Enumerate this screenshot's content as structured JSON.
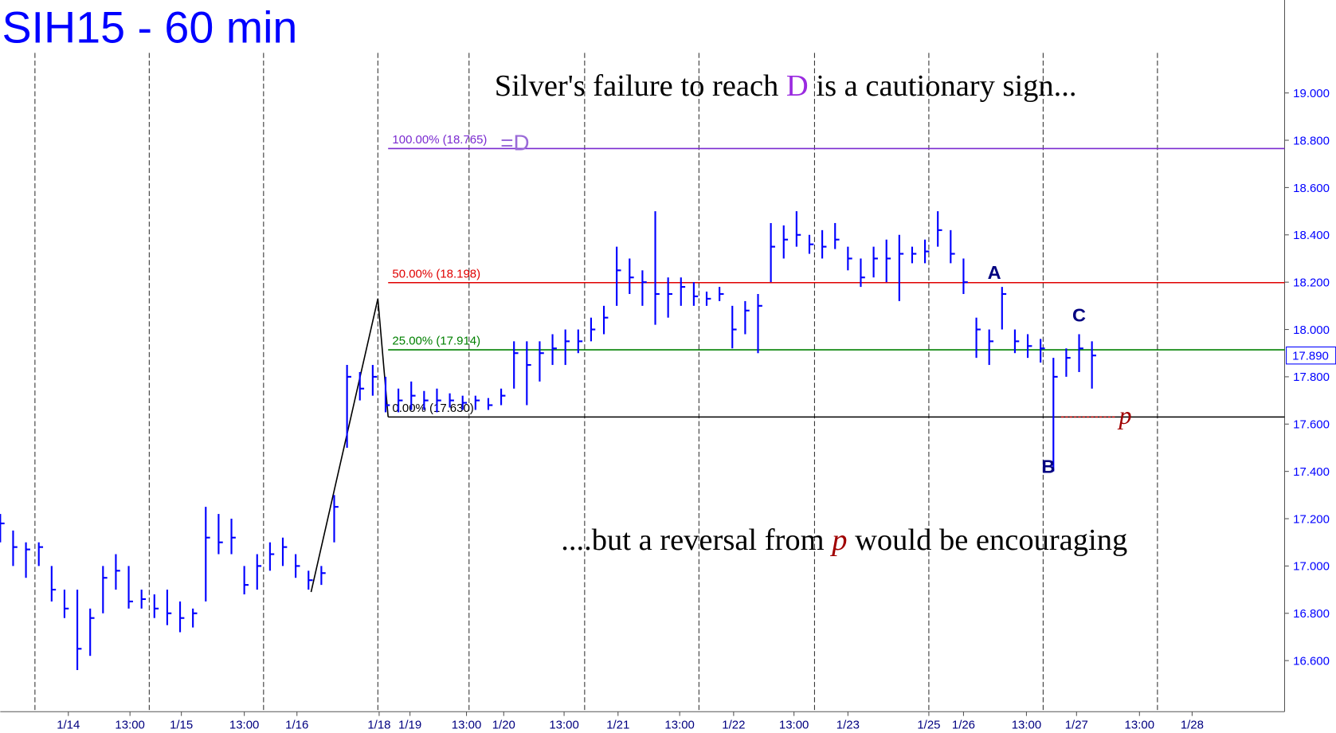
{
  "chart_data": {
    "type": "ohlc",
    "title": "SIH15 - 60 min",
    "headline": [
      "Silver's failure to reach ",
      "D",
      " is a cautionary sign..."
    ],
    "footline": [
      "....but a reversal from ",
      "p",
      " would be encouraging"
    ],
    "color": "#0000ff",
    "x": [
      0,
      1,
      2,
      3,
      4,
      5,
      6,
      7,
      8,
      9,
      10,
      11,
      12,
      13,
      14,
      15,
      16,
      17,
      18,
      19,
      20,
      21,
      22,
      23,
      24,
      25,
      26,
      27,
      28,
      29,
      30,
      31,
      32,
      33,
      34,
      35,
      36,
      37,
      38,
      39,
      40,
      41,
      42,
      43,
      44,
      45,
      46,
      47,
      48,
      49,
      50,
      51,
      52,
      53,
      54,
      55,
      56,
      57,
      58,
      59,
      60,
      61,
      62,
      63,
      64,
      65,
      66,
      67,
      68,
      69,
      70,
      71,
      72,
      73,
      74,
      75,
      76,
      77,
      78,
      79,
      80,
      81,
      82,
      83,
      84,
      85
    ],
    "high": [
      17.22,
      17.15,
      17.1,
      17.1,
      17.0,
      16.9,
      16.9,
      16.82,
      17.0,
      17.05,
      17.0,
      16.9,
      16.88,
      16.9,
      16.85,
      16.82,
      17.25,
      17.22,
      17.2,
      17.0,
      17.05,
      17.1,
      17.12,
      17.05,
      16.98,
      17.0,
      17.3,
      17.85,
      17.82,
      17.85,
      17.8,
      17.75,
      17.78,
      17.74,
      17.75,
      17.73,
      17.72,
      17.72,
      17.71,
      17.75,
      17.95,
      17.95,
      17.95,
      17.98,
      18.0,
      18.0,
      18.05,
      18.1,
      18.35,
      18.3,
      18.25,
      18.5,
      18.22,
      18.22,
      18.2,
      18.16,
      18.18,
      18.1,
      18.12,
      18.15,
      18.45,
      18.44,
      18.5,
      18.4,
      18.42,
      18.45,
      18.35,
      18.3,
      18.35,
      18.38,
      18.4,
      18.35,
      18.38,
      18.5,
      18.42,
      18.3,
      18.05,
      18.0,
      18.18,
      18.0,
      17.98,
      17.96,
      17.88,
      17.92,
      17.98,
      17.95
    ],
    "low": [
      17.1,
      17.0,
      16.95,
      17.0,
      16.85,
      16.78,
      16.56,
      16.62,
      16.8,
      16.9,
      16.82,
      16.82,
      16.78,
      16.75,
      16.72,
      16.74,
      16.85,
      17.05,
      17.05,
      16.88,
      16.9,
      16.98,
      17.0,
      16.95,
      16.9,
      16.92,
      17.1,
      17.5,
      17.7,
      17.72,
      17.65,
      17.65,
      17.66,
      17.66,
      17.65,
      17.67,
      17.66,
      17.66,
      17.66,
      17.68,
      17.75,
      17.68,
      17.78,
      17.85,
      17.85,
      17.9,
      17.95,
      17.98,
      18.1,
      18.15,
      18.1,
      18.02,
      18.05,
      18.1,
      18.1,
      18.1,
      18.12,
      17.92,
      17.98,
      17.9,
      18.2,
      18.3,
      18.35,
      18.32,
      18.3,
      18.34,
      18.25,
      18.18,
      18.22,
      18.2,
      18.12,
      18.28,
      18.28,
      18.35,
      18.28,
      18.15,
      17.88,
      17.85,
      18.0,
      17.9,
      17.88,
      17.86,
      17.4,
      17.8,
      17.82,
      17.75
    ],
    "close": [
      17.18,
      17.08,
      17.07,
      17.08,
      16.9,
      16.82,
      16.65,
      16.78,
      16.95,
      16.98,
      16.85,
      16.86,
      16.82,
      16.8,
      16.78,
      16.8,
      17.12,
      17.1,
      17.12,
      16.92,
      17.0,
      17.05,
      17.08,
      17.0,
      16.94,
      16.97,
      17.25,
      17.8,
      17.75,
      17.8,
      17.68,
      17.7,
      17.72,
      17.7,
      17.7,
      17.7,
      17.69,
      17.7,
      17.68,
      17.72,
      17.9,
      17.85,
      17.9,
      17.92,
      17.95,
      17.95,
      18.0,
      18.05,
      18.25,
      18.22,
      18.2,
      18.15,
      18.15,
      18.18,
      18.14,
      18.13,
      18.15,
      18.0,
      18.08,
      18.1,
      18.35,
      18.38,
      18.4,
      18.36,
      18.35,
      18.38,
      18.3,
      18.22,
      18.3,
      18.3,
      18.32,
      18.32,
      18.33,
      18.42,
      18.32,
      18.2,
      18.0,
      17.95,
      18.15,
      17.95,
      17.93,
      17.92,
      17.8,
      17.88,
      17.92,
      17.89
    ],
    "xlim": [
      0,
      100
    ],
    "ylim": [
      16.384,
      19.393
    ],
    "yticks": [
      {
        "value": 16.6,
        "label": "16.600"
      },
      {
        "value": 16.8,
        "label": "16.800"
      },
      {
        "value": 17.0,
        "label": "17.000"
      },
      {
        "value": 17.2,
        "label": "17.200"
      },
      {
        "value": 17.4,
        "label": "17.400"
      },
      {
        "value": 17.6,
        "label": "17.600"
      },
      {
        "value": 17.8,
        "label": "17.800"
      },
      {
        "value": 18.0,
        "label": "18.000"
      },
      {
        "value": 18.2,
        "label": "18.200"
      },
      {
        "value": 18.4,
        "label": "18.400"
      },
      {
        "value": 18.6,
        "label": "18.600"
      },
      {
        "value": 18.8,
        "label": "18.800"
      },
      {
        "value": 19.0,
        "label": "19.000"
      }
    ],
    "xticks": [
      {
        "value": 5.3,
        "label": "1/14"
      },
      {
        "value": 10.1,
        "label": "13:00"
      },
      {
        "value": 14.1,
        "label": "1/15"
      },
      {
        "value": 19.0,
        "label": "13:00"
      },
      {
        "value": 23.1,
        "label": "1/16"
      },
      {
        "value": 29.5,
        "label": "1/18"
      },
      {
        "value": 31.9,
        "label": "1/19"
      },
      {
        "value": 36.3,
        "label": "13:00"
      },
      {
        "value": 39.2,
        "label": "1/20"
      },
      {
        "value": 43.9,
        "label": "13:00"
      },
      {
        "value": 48.1,
        "label": "1/21"
      },
      {
        "value": 52.9,
        "label": "13:00"
      },
      {
        "value": 57.1,
        "label": "1/22"
      },
      {
        "value": 61.8,
        "label": "13:00"
      },
      {
        "value": 66.0,
        "label": "1/23"
      },
      {
        "value": 72.3,
        "label": "1/25"
      },
      {
        "value": 75.0,
        "label": "1/26"
      },
      {
        "value": 79.9,
        "label": "13:00"
      },
      {
        "value": 83.8,
        "label": "1/27"
      },
      {
        "value": 88.7,
        "label": "13:00"
      },
      {
        "value": 92.8,
        "label": "1/28"
      }
    ],
    "xgrid": [
      2.7,
      11.6,
      20.5,
      29.4,
      36.5,
      45.5,
      54.4,
      63.4,
      72.3,
      81.2,
      90.1
    ],
    "levels": [
      {
        "label": "100.00% (18.765)",
        "value": 18.765,
        "color": "#7a2ad0",
        "suffix": "=D"
      },
      {
        "label": "50.00% (18.198)",
        "value": 18.198,
        "color": "#e00000"
      },
      {
        "label": "25.00% (17.914)",
        "value": 17.914,
        "color": "#008000"
      },
      {
        "label": "0.00% (17.630)",
        "value": 17.63,
        "color": "#000000"
      }
    ],
    "pattern_line": {
      "x": [
        24.2,
        29.4,
        30.2
      ],
      "y": [
        16.89,
        18.13,
        17.63
      ]
    },
    "wave_labels": [
      {
        "label": "A",
        "x": 77.4,
        "y": 18.2
      },
      {
        "label": "B",
        "x": 81.6,
        "y": 17.38
      },
      {
        "label": "C",
        "x": 84.0,
        "y": 18.02
      }
    ],
    "target": {
      "label": "p",
      "value": 17.63,
      "x": [
        82.6,
        86.9
      ]
    },
    "last_price": {
      "value": 17.89,
      "label": "17.890"
    }
  }
}
